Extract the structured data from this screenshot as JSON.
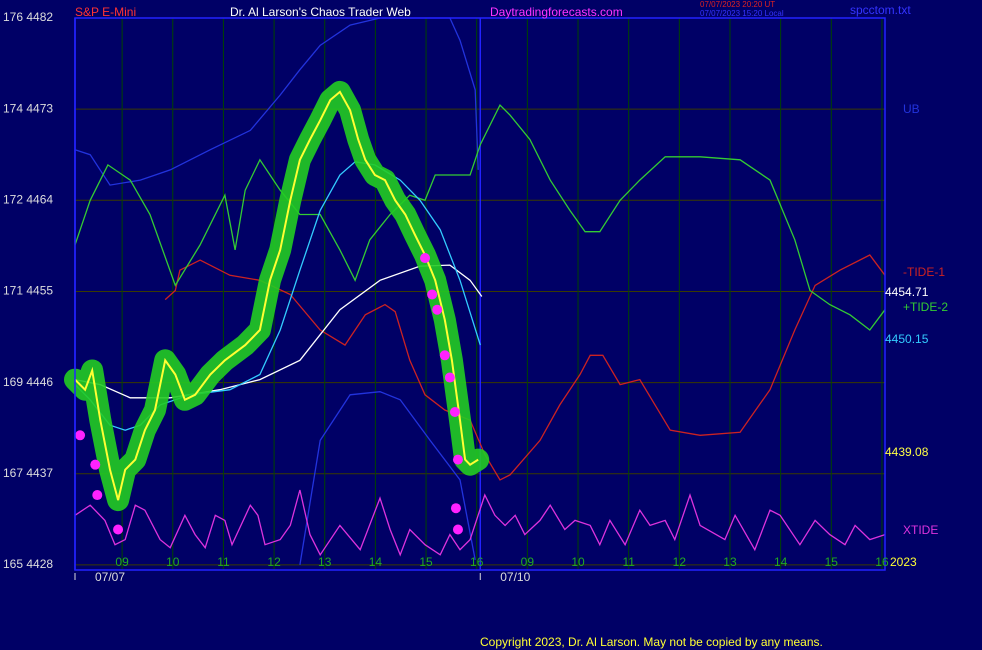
{
  "chart_data": {
    "type": "line",
    "subtitle": "S&P E-Mini",
    "title": "Dr. Al Larson's Chaos Trader Web",
    "source": "Daytradingforecasts.com",
    "timestamps": [
      {
        "text": "07/07/2023 20:20 UT",
        "color": "#dd2222"
      },
      {
        "text": "07/07/2023 15:20 Local",
        "color": "#3333ff"
      }
    ],
    "file": "spcctom.txt",
    "copyright": "Copyright 2023, Dr. Al Larson. May not be copied by any means.",
    "xlim": [
      0.07,
      16.06
    ],
    "xticks": [
      {
        "value": 1,
        "label": "09"
      },
      {
        "value": 2,
        "label": "10"
      },
      {
        "value": 3,
        "label": "11"
      },
      {
        "value": 4,
        "label": "12"
      },
      {
        "value": 5,
        "label": "13"
      },
      {
        "value": 6,
        "label": "14"
      },
      {
        "value": 7,
        "label": "15"
      },
      {
        "value": 8,
        "label": "16"
      },
      {
        "value": 9,
        "label": "09"
      },
      {
        "value": 10,
        "label": "10"
      },
      {
        "value": 11,
        "label": "11"
      },
      {
        "value": 12,
        "label": "12"
      },
      {
        "value": 13,
        "label": "13"
      },
      {
        "value": 14,
        "label": "14"
      },
      {
        "value": 15,
        "label": "15"
      },
      {
        "value": 16,
        "label": "16"
      }
    ],
    "xdates": [
      {
        "value": 0.07,
        "label": "07/07"
      },
      {
        "value": 8.07,
        "label": "07/10"
      }
    ],
    "ylim": [
      4427.5,
      4482
    ],
    "yticks": [
      {
        "value": 4482,
        "label": "176 4482"
      },
      {
        "value": 4473,
        "label": "174 4473"
      },
      {
        "value": 4464,
        "label": "172 4464"
      },
      {
        "value": 4455,
        "label": "171 4455"
      },
      {
        "value": 4446,
        "label": "169 4446"
      },
      {
        "value": 4437,
        "label": "167 4437"
      },
      {
        "value": 4428,
        "label": "165 4428"
      }
    ],
    "grid": true,
    "series": [
      {
        "name": "UB",
        "color": "#2233dd",
        "style": "line",
        "x": [
          0.07,
          0.37,
          0.76,
          1.36,
          1.95,
          2.74,
          3.53,
          4.12,
          4.51,
          4.91,
          5.5,
          6.09,
          7.47,
          7.67,
          7.97,
          8.03
        ],
        "values": [
          4469.0,
          4468.5,
          4465.5,
          4466.0,
          4467.0,
          4469.0,
          4470.9,
          4474.4,
          4476.9,
          4479.3,
          4481.3,
          4482.0,
          4482.0,
          4479.8,
          4474.9,
          4467.0
        ]
      },
      {
        "color": "#2233dd",
        "style": "line",
        "x": [
          4.51,
          4.91,
          5.5,
          6.09,
          6.49,
          7.08,
          7.67,
          7.97
        ],
        "values": [
          4428.0,
          4440.3,
          4444.8,
          4445.1,
          4444.3,
          4440.3,
          4436.4,
          4428.5
        ]
      },
      {
        "name": "-TIDE-1",
        "color": "#cc2222",
        "style": "line",
        "x": [
          1.85,
          2.05,
          2.14,
          2.54,
          3.13,
          3.72,
          4.32,
          4.91,
          5.4,
          5.8,
          6.19,
          6.39,
          6.68,
          6.98,
          7.37,
          7.87,
          8.16,
          8.46,
          8.66,
          9.25,
          9.64,
          10.04,
          10.24,
          10.49,
          10.83,
          11.22,
          11.82,
          12.41,
          13.2,
          13.79,
          14.28,
          14.68,
          15.17,
          15.76,
          16.06
        ],
        "values": [
          4454.2,
          4455.1,
          4457.1,
          4458.1,
          4456.6,
          4456.1,
          4454.7,
          4451.2,
          4449.7,
          4452.7,
          4453.7,
          4453.0,
          4448.2,
          4444.8,
          4443.3,
          4442.3,
          4438.9,
          4436.4,
          4436.9,
          4440.3,
          4443.8,
          4446.8,
          4448.7,
          4448.7,
          4445.8,
          4446.3,
          4441.3,
          4440.8,
          4441.1,
          4445.3,
          4451.2,
          4455.6,
          4457.1,
          4458.6,
          4456.6
        ]
      },
      {
        "name": "+TIDE-2",
        "color": "#33cc33",
        "style": "line",
        "x": [
          0.07,
          0.37,
          0.72,
          1.16,
          1.55,
          2.05,
          2.54,
          3.03,
          3.23,
          3.43,
          3.72,
          4.12,
          4.51,
          4.91,
          5.3,
          5.6,
          5.89,
          6.29,
          6.68,
          6.98,
          7.18,
          7.87,
          8.07,
          8.46,
          8.66,
          9.05,
          9.45,
          9.84,
          10.14,
          10.43,
          10.83,
          11.22,
          11.72,
          12.41,
          13.2,
          13.79,
          14.28,
          14.58,
          14.97,
          15.37,
          15.76,
          16.06
        ],
        "values": [
          4459.6,
          4464.0,
          4467.5,
          4466.0,
          4462.6,
          4455.6,
          4459.6,
          4464.5,
          4459.1,
          4465.0,
          4468.0,
          4465.0,
          4462.6,
          4462.6,
          4459.1,
          4456.1,
          4460.1,
          4462.6,
          4464.5,
          4464.0,
          4466.5,
          4466.5,
          4469.5,
          4473.4,
          4472.4,
          4470.0,
          4466.0,
          4463.0,
          4460.9,
          4460.9,
          4464.0,
          4466.0,
          4468.3,
          4468.3,
          4468.0,
          4466.0,
          4460.1,
          4455.1,
          4453.7,
          4452.7,
          4451.2,
          4453.2
        ]
      },
      {
        "name": "XTIDE",
        "color": "#dd33dd",
        "style": "line",
        "x": [
          0.07,
          0.37,
          0.66,
          0.86,
          1.06,
          1.26,
          1.45,
          1.75,
          1.95,
          2.24,
          2.44,
          2.64,
          2.84,
          3.03,
          3.17,
          3.53,
          3.68,
          3.82,
          4.12,
          4.32,
          4.51,
          4.71,
          4.91,
          5.3,
          5.7,
          6.09,
          6.29,
          6.49,
          6.68,
          6.98,
          7.28,
          7.47,
          7.67,
          7.87,
          8.16,
          8.36,
          8.56,
          8.76,
          8.95,
          9.25,
          9.45,
          9.74,
          9.94,
          10.24,
          10.43,
          10.63,
          10.93,
          11.22,
          11.42,
          11.72,
          11.91,
          12.21,
          12.41,
          12.9,
          13.1,
          13.49,
          13.79,
          13.99,
          14.38,
          14.68,
          14.97,
          15.27,
          15.47,
          15.76,
          16.06
        ],
        "values": [
          4432.9,
          4433.9,
          4432.4,
          4430.0,
          4430.5,
          4433.9,
          4433.4,
          4430.5,
          4429.7,
          4432.9,
          4431.0,
          4429.7,
          4432.9,
          4432.4,
          4430.0,
          4433.9,
          4432.9,
          4430.0,
          4430.5,
          4431.9,
          4435.4,
          4431.0,
          4429.0,
          4431.9,
          4429.5,
          4434.6,
          4431.5,
          4429.0,
          4431.5,
          4430.0,
          4429.0,
          4431.0,
          4429.5,
          4430.5,
          4434.9,
          4432.9,
          4431.9,
          4432.9,
          4431.0,
          4432.4,
          4433.9,
          4431.5,
          4432.4,
          4431.9,
          4430.0,
          4432.4,
          4430.0,
          4433.4,
          4431.9,
          4432.4,
          4430.5,
          4434.9,
          4431.9,
          4430.5,
          4432.9,
          4429.5,
          4433.4,
          4432.9,
          4430.0,
          4432.4,
          4431.0,
          4430.0,
          4431.9,
          4430.5,
          4431.0
        ]
      },
      {
        "color": "#ffffff",
        "style": "line",
        "x": [
          0.07,
          0.57,
          1.16,
          1.95,
          2.93,
          3.72,
          4.51,
          5.3,
          6.09,
          6.88,
          7.47,
          7.87,
          8.1
        ],
        "values": [
          4446.3,
          4445.8,
          4444.5,
          4444.5,
          4445.3,
          4446.3,
          4448.2,
          4453.2,
          4456.1,
          4457.5,
          4457.6,
          4456.1,
          4454.5
        ]
      },
      {
        "color": "#33ccff",
        "style": "line",
        "x": [
          0.07,
          0.37,
          0.76,
          1.06,
          1.36,
          1.75,
          2.34,
          3.13,
          3.72,
          4.12,
          4.51,
          4.91,
          5.3,
          5.6,
          5.99,
          6.49,
          6.88,
          7.28,
          7.67,
          8.07
        ],
        "values": [
          4445.8,
          4444.3,
          4441.8,
          4441.3,
          4441.8,
          4443.8,
          4444.8,
          4445.3,
          4446.8,
          4451.2,
          4457.1,
          4463.0,
          4466.5,
          4467.8,
          4467.5,
          4466.0,
          4464.0,
          4461.1,
          4456.1,
          4449.7
        ]
      },
      {
        "color": "#ffff33",
        "style": "line",
        "glow": "#22cc22",
        "x": [
          0.07,
          0.27,
          0.41,
          0.57,
          0.76,
          0.92,
          1.06,
          1.26,
          1.45,
          1.65,
          1.85,
          2.05,
          2.24,
          2.44,
          2.74,
          3.03,
          3.43,
          3.72,
          3.92,
          4.12,
          4.32,
          4.51,
          4.71,
          4.91,
          5.11,
          5.3,
          5.5,
          5.66,
          5.8,
          5.99,
          6.19,
          6.39,
          6.59,
          6.78,
          6.98,
          7.18,
          7.37,
          7.51,
          7.67,
          7.77,
          7.87,
          8.03
        ],
        "values": [
          4446.3,
          4445.3,
          4447.2,
          4442.3,
          4437.4,
          4434.4,
          4437.4,
          4438.4,
          4441.3,
          4443.3,
          4448.2,
          4446.8,
          4444.3,
          4444.8,
          4446.8,
          4448.2,
          4449.7,
          4451.2,
          4456.1,
          4459.1,
          4464.0,
          4468.0,
          4470.0,
          4471.9,
          4473.9,
          4474.7,
          4472.9,
          4470.0,
          4468.0,
          4466.5,
          4466.0,
          4464.0,
          4462.6,
          4460.6,
          4458.6,
          4456.1,
          4452.2,
          4448.2,
          4442.3,
          4438.4,
          4437.9,
          4438.4
        ]
      },
      {
        "color": "#ff22ff",
        "style": "dots",
        "x": [
          0.17,
          0.47,
          0.51,
          0.92,
          6.98,
          7.12,
          7.22,
          7.37,
          7.47,
          7.57,
          7.63,
          7.59,
          7.63
        ],
        "values": [
          4440.8,
          4437.9,
          4434.9,
          4431.5,
          4458.3,
          4454.7,
          4453.2,
          4448.7,
          4446.5,
          4443.1,
          4438.4,
          4433.6,
          4431.5
        ]
      }
    ],
    "end_labels": [
      {
        "text": "4454.71",
        "color": "#ffffff"
      },
      {
        "text": "4450.15",
        "color": "#33ccff"
      },
      {
        "text": "4439.08",
        "color": "#ffff44"
      }
    ],
    "year_label": "2023"
  }
}
